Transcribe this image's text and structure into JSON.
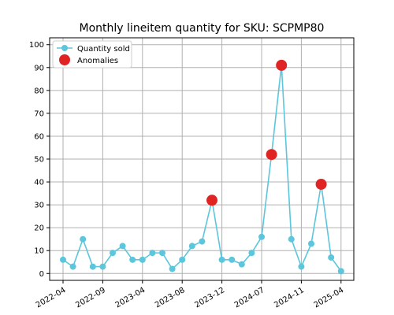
{
  "chart_data": {
    "type": "line",
    "title": "Monthly lineitem quantity for SKU: SCPMP80",
    "xlabel": "",
    "ylabel": "",
    "ylim": [
      -3,
      103
    ],
    "yticks": [
      0,
      10,
      20,
      30,
      40,
      50,
      60,
      70,
      80,
      90,
      100
    ],
    "x_tick_labels": [
      "2022-04",
      "2022-09",
      "2023-04",
      "2023-08",
      "2023-12",
      "2024-07",
      "2024-11",
      "2025-04"
    ],
    "grid": true,
    "legend_position": "top-left",
    "colors": {
      "line": "#5bc6dc",
      "anomaly": "#e02424"
    },
    "series": [
      {
        "name": "Quantity sold",
        "values": [
          6,
          3,
          15,
          3,
          3,
          9,
          12,
          6,
          6,
          9,
          9,
          2,
          6,
          12,
          14,
          32,
          6,
          6,
          4,
          9,
          16,
          52,
          91,
          15,
          3,
          13,
          39,
          7,
          1
        ]
      },
      {
        "name": "Anomalies",
        "points": [
          {
            "index": 15,
            "value": 32
          },
          {
            "index": 21,
            "value": 52
          },
          {
            "index": 22,
            "value": 91
          },
          {
            "index": 26,
            "value": 39
          }
        ]
      }
    ]
  }
}
